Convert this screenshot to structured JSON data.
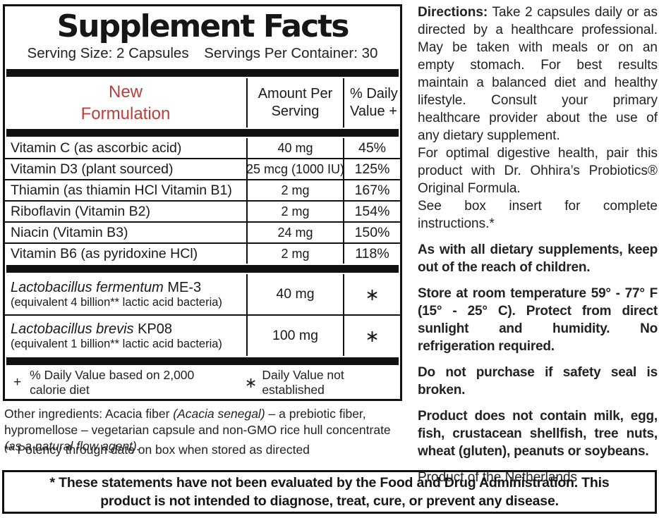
{
  "colors": {
    "accent_red": "#b8403c",
    "ink": "#111111"
  },
  "panel": {
    "title": "Supplement Facts",
    "serving_size": "Serving Size: 2 Capsules",
    "servings_per_container": "Servings Per Container: 30",
    "header": {
      "new_formulation_line1": "New",
      "new_formulation_line2": "Formulation",
      "amount_col": "Amount Per Serving",
      "dv_col": "% Daily Value +"
    },
    "nutrient_rows": [
      {
        "name": "Vitamin C (as ascorbic acid)",
        "amount": "40 mg",
        "dv": "45%"
      },
      {
        "name": "Vitamin D3 (plant sourced)",
        "amount": "25 mcg (1000 IU)",
        "dv": "125%"
      },
      {
        "name": "Thiamin (as thiamin HCl  Vitamin B1)",
        "amount": "2 mg",
        "dv": "167%"
      },
      {
        "name": "Riboflavin (Vitamin B2)",
        "amount": "2 mg",
        "dv": "154%"
      },
      {
        "name": "Niacin (Vitamin B3)",
        "amount": "24 mg",
        "dv": "150%"
      },
      {
        "name": "Vitamin B6 (as pyridoxine HCl)",
        "amount": "2 mg",
        "dv": "118%"
      }
    ],
    "probiotic_rows": [
      {
        "name_italic": "Lactobacillus fermentum",
        "name_rest": " ME-3",
        "detail": "(equivalent 4 billion** lactic acid bacteria)",
        "amount": "40 mg",
        "dv": "∗"
      },
      {
        "name_italic": "Lactobacillus brevis",
        "name_rest": " KP08",
        "detail": "(equivalent 1 billion** lactic acid bacteria)",
        "amount": "100 mg",
        "dv": "∗"
      }
    ],
    "footnote": {
      "plus_symbol": "+",
      "plus_text": "% Daily Value based on 2,000 calorie diet",
      "asterisk_symbol": "∗",
      "asterisk_text": "Daily Value not established"
    }
  },
  "below_panel": {
    "other_ingredients_parts": [
      {
        "text": "Other ingredients: Acacia fiber ",
        "italic": false
      },
      {
        "text": "(Acacia senegal)",
        "italic": true
      },
      {
        "text": " – a prebiotic fiber, hypromellose – vegetarian capsule and non-GMO rice hull concentrate ",
        "italic": false
      },
      {
        "text": "(as a natural flow agent).",
        "italic": true
      }
    ],
    "potency_note": "** Potency through date on box when stored as directed"
  },
  "right_column": {
    "paragraphs": [
      {
        "lead": "Directions:",
        "text": "Take 2 capsules daily or as directed by a healthcare professional. May be taken with meals or on an empty stomach. For best results maintain a balanced diet and healthy lifestyle. Consult your primary healthcare provider about the use of any dietary supplement.",
        "bold": false,
        "gap": false
      },
      {
        "text": "For optimal digestive health, pair this product with Dr. Ohhira’s Probiotics® Original Formula.",
        "bold": false,
        "gap": false
      },
      {
        "text": "See box insert for complete instructions.*",
        "bold": false,
        "gap": false
      },
      {
        "text": "As with all dietary supplements, keep out of the reach of children.",
        "bold": true,
        "gap": true
      },
      {
        "text": "Store at room temperature 59° - 77° F (15° - 25° C). Protect from direct sunlight and humidity. No refrigeration required.",
        "bold": true,
        "gap": true
      },
      {
        "text": "Do not purchase if safety seal is broken.",
        "bold": true,
        "gap": true
      },
      {
        "text": "Product does not contain milk, egg, fish, crustacean shellfish, tree nuts, wheat (gluten), peanuts or soybeans.",
        "bold": true,
        "gap": true
      },
      {
        "text": "Product of the Netherlands",
        "bold": false,
        "gap": true
      }
    ]
  },
  "footer": {
    "disclaimer": "* These statements have not been evaluated by the Food and Drug Administration. This product is not intended to diagnose, treat, cure, or prevent any disease."
  }
}
